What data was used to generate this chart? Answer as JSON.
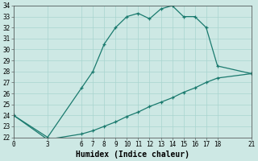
{
  "xlabel": "Humidex (Indice chaleur)",
  "line1_x": [
    0,
    3,
    6,
    7,
    8,
    9,
    10,
    11,
    12,
    13,
    14,
    15,
    16,
    17,
    18,
    21
  ],
  "line1_y": [
    24,
    22,
    26.5,
    28,
    30.5,
    32,
    33,
    33.3,
    32.8,
    33.7,
    34,
    33,
    33,
    32,
    28.5,
    27.8
  ],
  "line2_x": [
    0,
    3,
    6,
    7,
    8,
    9,
    10,
    11,
    12,
    13,
    14,
    15,
    16,
    17,
    18,
    21
  ],
  "line2_y": [
    24,
    21.8,
    22.3,
    22.6,
    23.0,
    23.4,
    23.9,
    24.3,
    24.8,
    25.2,
    25.6,
    26.1,
    26.5,
    27.0,
    27.4,
    27.8
  ],
  "line_color": "#1a7a6e",
  "bg_color": "#cde8e4",
  "grid_color": "#a8d4cf",
  "xlim": [
    0,
    21
  ],
  "ylim": [
    22,
    34
  ],
  "yticks": [
    22,
    23,
    24,
    25,
    26,
    27,
    28,
    29,
    30,
    31,
    32,
    33,
    34
  ],
  "xticks": [
    0,
    3,
    6,
    7,
    8,
    9,
    10,
    11,
    12,
    13,
    14,
    15,
    16,
    17,
    18,
    21
  ],
  "marker": "+",
  "linewidth": 0.9,
  "markersize": 3.5,
  "markeredgewidth": 0.9,
  "xlabel_fontsize": 7,
  "tick_fontsize": 5.5
}
